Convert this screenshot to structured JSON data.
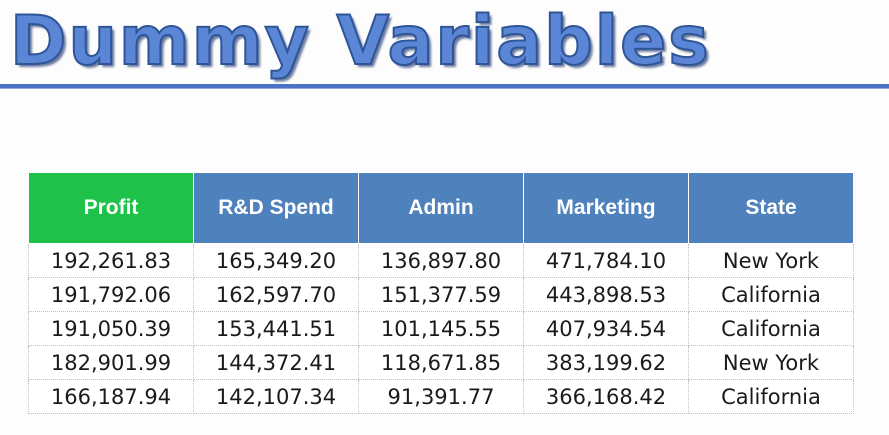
{
  "slide": {
    "title": "Dummy Variables"
  },
  "table": {
    "columns": [
      "Profit",
      "R&D Spend",
      "Admin",
      "Marketing",
      "State"
    ],
    "rows": [
      [
        "192,261.83",
        "165,349.20",
        "136,897.80",
        "471,784.10",
        "New York"
      ],
      [
        "191,792.06",
        "162,597.70",
        "151,377.59",
        "443,898.53",
        "California"
      ],
      [
        "191,050.39",
        "153,441.51",
        "101,145.55",
        "407,934.54",
        "California"
      ],
      [
        "182,901.99",
        "144,372.41",
        "118,671.85",
        "383,199.62",
        "New York"
      ],
      [
        "166,187.94",
        "142,107.34",
        "91,391.77",
        "366,168.42",
        "California"
      ]
    ]
  },
  "colors": {
    "header_blue": "#4f81bd",
    "highlight_green": "#1ec24a",
    "title_blue": "#5b86d6"
  }
}
